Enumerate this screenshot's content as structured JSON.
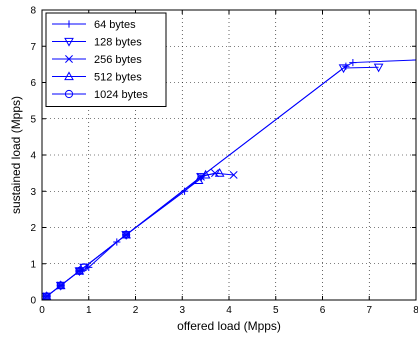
{
  "chart_data": {
    "type": "line",
    "title": "",
    "xlabel": "offered load (Mpps)",
    "ylabel": "sustained load (Mpps)",
    "xlim": [
      0,
      8
    ],
    "ylim": [
      0,
      8
    ],
    "xticks": [
      0,
      1,
      2,
      3,
      4,
      5,
      6,
      7,
      8
    ],
    "yticks": [
      0,
      1,
      2,
      3,
      4,
      5,
      6,
      7,
      8
    ],
    "grid": true,
    "legend_position": "top-left",
    "line_color": "#0000ff",
    "series": [
      {
        "name": "64 bytes",
        "marker": "plus",
        "points": [
          [
            0.1,
            0.1
          ],
          [
            0.4,
            0.4
          ],
          [
            0.8,
            0.8
          ],
          [
            1.0,
            0.9
          ],
          [
            1.6,
            1.6
          ],
          [
            1.8,
            1.8
          ],
          [
            3.05,
            3.0
          ],
          [
            3.4,
            3.4
          ],
          [
            6.5,
            6.45
          ],
          [
            6.65,
            6.55
          ],
          [
            8.0,
            6.62
          ]
        ]
      },
      {
        "name": "128 bytes",
        "marker": "triangle-down",
        "points": [
          [
            0.1,
            0.1
          ],
          [
            0.4,
            0.4
          ],
          [
            0.8,
            0.8
          ],
          [
            0.9,
            0.9
          ],
          [
            1.8,
            1.8
          ],
          [
            3.4,
            3.4
          ],
          [
            6.45,
            6.4
          ],
          [
            7.2,
            6.42
          ]
        ]
      },
      {
        "name": "256 bytes",
        "marker": "x",
        "points": [
          [
            0.1,
            0.1
          ],
          [
            0.4,
            0.4
          ],
          [
            0.8,
            0.8
          ],
          [
            1.8,
            1.8
          ],
          [
            3.4,
            3.4
          ],
          [
            3.7,
            3.5
          ],
          [
            4.1,
            3.45
          ]
        ]
      },
      {
        "name": "512 bytes",
        "marker": "triangle-up",
        "points": [
          [
            0.1,
            0.1
          ],
          [
            0.4,
            0.4
          ],
          [
            0.8,
            0.8
          ],
          [
            1.8,
            1.8
          ],
          [
            3.35,
            3.3
          ],
          [
            3.5,
            3.45
          ],
          [
            3.8,
            3.5
          ]
        ]
      },
      {
        "name": "1024 bytes",
        "marker": "circle",
        "points": [
          [
            0.1,
            0.1
          ],
          [
            0.4,
            0.4
          ],
          [
            0.8,
            0.8
          ],
          [
            0.9,
            0.9
          ],
          [
            1.8,
            1.8
          ]
        ]
      }
    ]
  }
}
